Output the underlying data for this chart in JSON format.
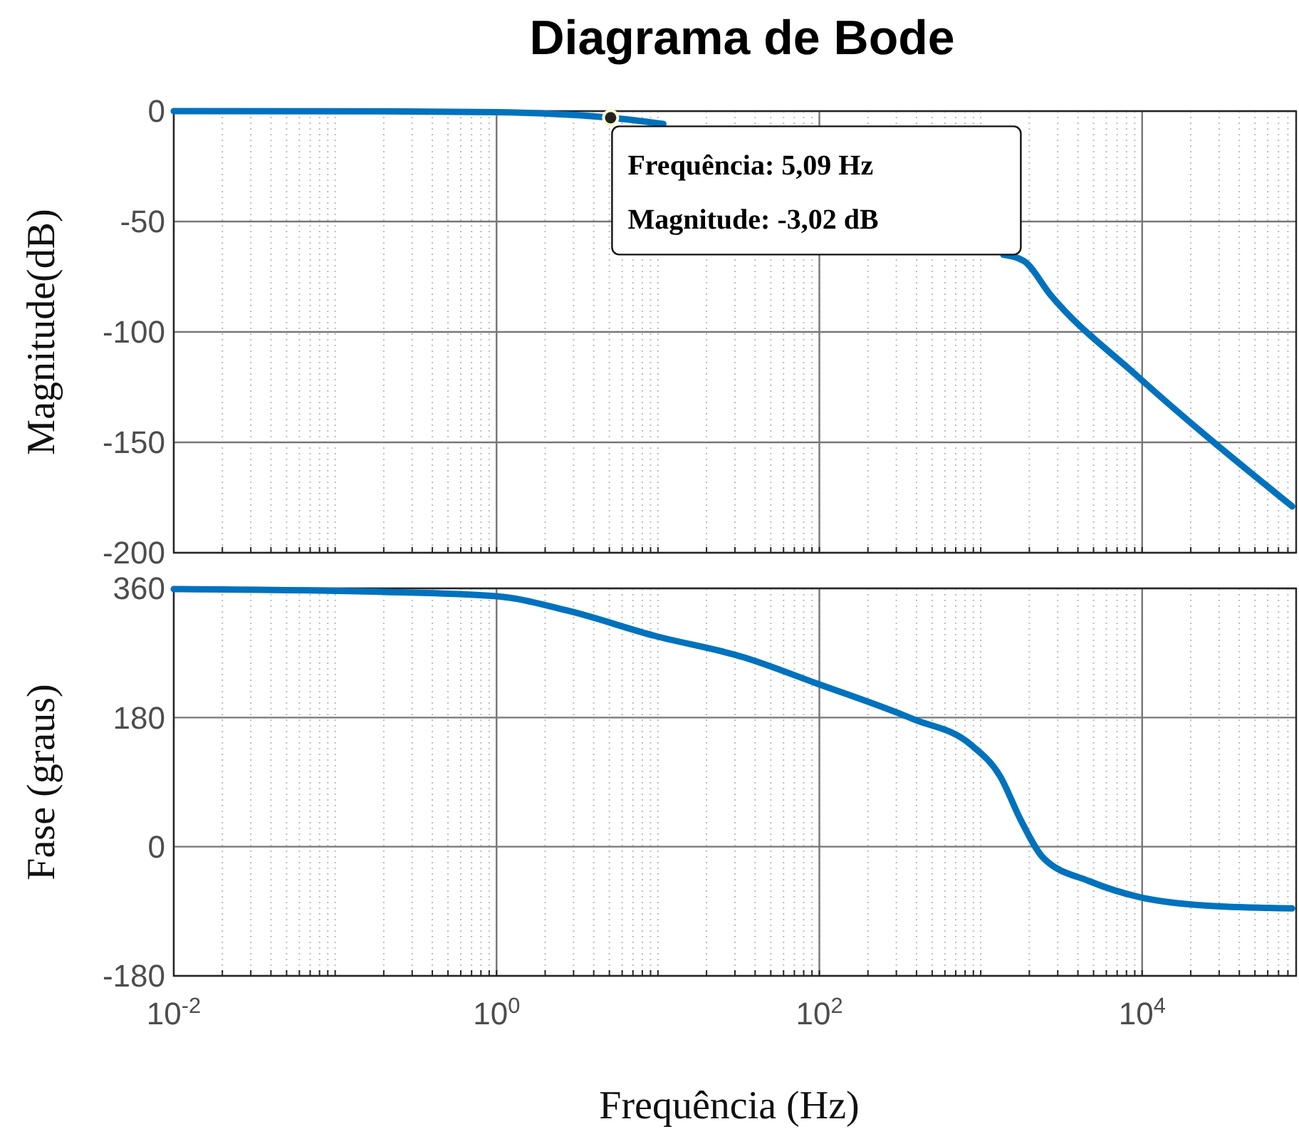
{
  "chart_data": [
    {
      "type": "line",
      "title": "Diagrama de Bode",
      "ylabel": "Magnitude(dB)",
      "log": "x",
      "grid": true,
      "tick_labels": "y",
      "xlim": [
        0.01,
        90000
      ],
      "xticks": [
        {
          "value": 0.01,
          "label": null
        },
        {
          "value": 1,
          "label": null
        },
        {
          "value": 100,
          "label": null
        },
        {
          "value": 10000,
          "label": null
        }
      ],
      "ylim": [
        -200,
        0
      ],
      "yticks": [
        -200,
        -150,
        -100,
        -50,
        0
      ],
      "series": [
        {
          "color": "#0072bd",
          "x": [
            0.01,
            0.2,
            1,
            5.09,
            10.8,
            100,
            1380,
            1860,
            2690,
            9330,
            85000
          ],
          "values": [
            0,
            -0.1,
            -0.5,
            -3,
            -5.8,
            null,
            -65,
            -68,
            -83,
            -120,
            -179
          ]
        }
      ],
      "annotations": [
        {
          "text": "Frequência: 5,09 Hz",
          "x": 5.09,
          "y": -3.02
        },
        "Magnitude: -3,02 dB"
      ]
    },
    {
      "type": "line",
      "ylabel": "Fase (graus)",
      "xlabel": "Frequência (Hz)",
      "log": "x",
      "grid": true,
      "xlim": [
        0.01,
        90000
      ],
      "xticks": [
        {
          "value": 0.01,
          "label": "10$^{-2}$"
        },
        {
          "value": 1,
          "label": "10$^{0}$"
        },
        {
          "value": 100,
          "label": "10$^{2}$"
        },
        {
          "value": 10000,
          "label": "10$^{4}$"
        }
      ],
      "ylim": [
        -180,
        360
      ],
      "yticks": [
        -180,
        0,
        180,
        360
      ],
      "series": [
        {
          "color": "#0072bd",
          "x": [
            0.01,
            0.2,
            1,
            2.75,
            9.5,
            34,
            95,
            380,
            870,
            1320,
            1780,
            2450,
            4700,
            9500,
            24500,
            85000
          ],
          "values": [
            359,
            355,
            349,
            329,
            294,
            264,
            228,
            178,
            142,
            98,
            36,
            -16,
            -48,
            -70,
            -82,
            -86
          ]
        }
      ]
    }
  ]
}
